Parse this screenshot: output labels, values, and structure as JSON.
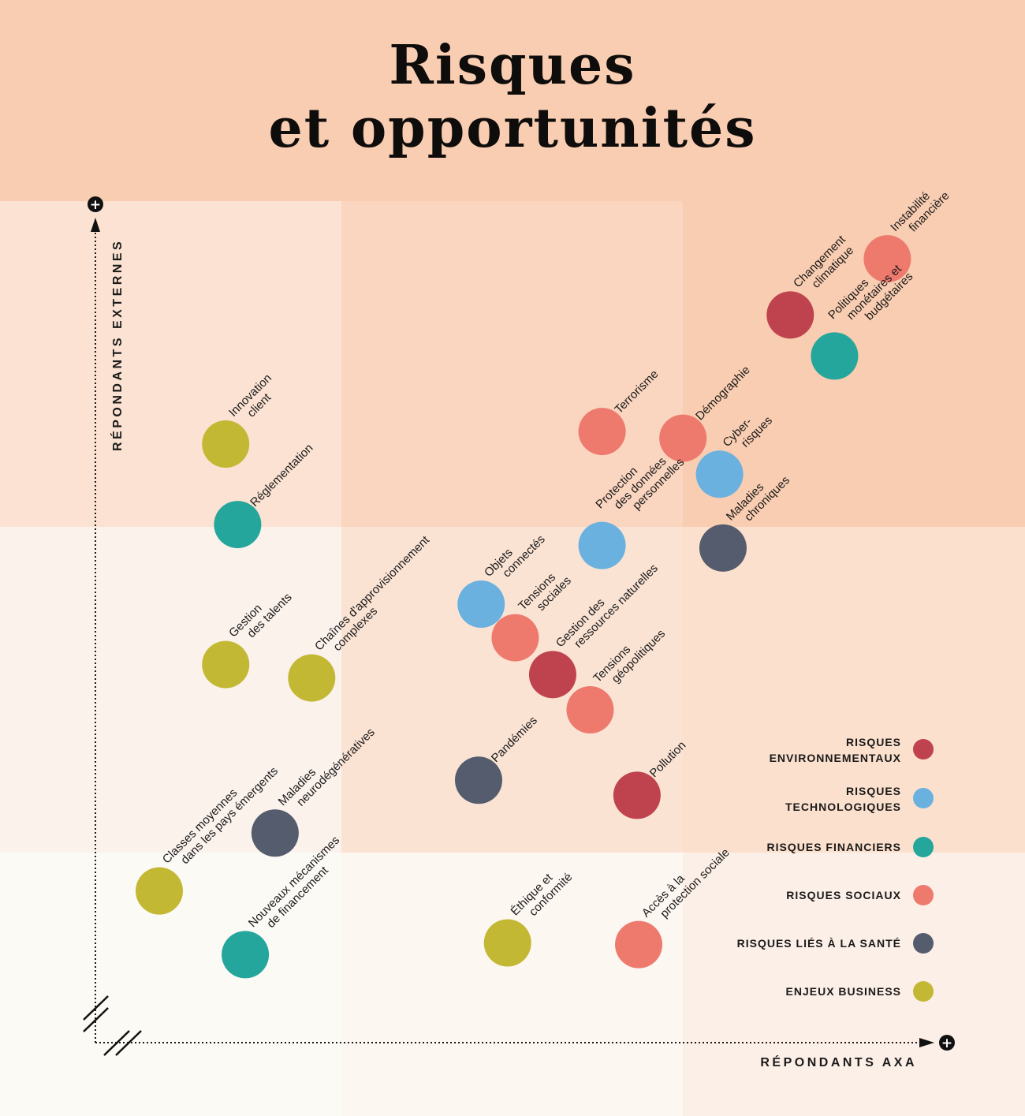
{
  "title_lines": [
    "Risques",
    "et opportunités"
  ],
  "chart_data": {
    "type": "scatter",
    "xlabel": "RÉPONDANTS AXA",
    "ylabel": "RÉPONDANTS EXTERNES",
    "axis_end_marker": "+",
    "xlim": [
      0,
      100
    ],
    "ylim": [
      0,
      100
    ],
    "grid": "3x3 tinted quadrants",
    "categories": [
      {
        "key": "env",
        "label": [
          "RISQUES",
          "ENVIRONNEMENTAUX"
        ],
        "color": "#bf434e"
      },
      {
        "key": "tech",
        "label": [
          "RISQUES",
          "TECHNOLOGIQUES"
        ],
        "color": "#6ab1e0"
      },
      {
        "key": "fin",
        "label": [
          "RISQUES FINANCIERS"
        ],
        "color": "#25a69c"
      },
      {
        "key": "soc",
        "label": [
          "RISQUES SOCIAUX"
        ],
        "color": "#ee7a6e"
      },
      {
        "key": "sante",
        "label": [
          "RISQUES LIÉS À LA SANTÉ"
        ],
        "color": "#545c6e"
      },
      {
        "key": "biz",
        "label": [
          "ENJEUX BUSINESS"
        ],
        "color": "#c3b833"
      }
    ],
    "points": [
      {
        "label": [
          "Instabilité",
          "financière"
        ],
        "category": "soc",
        "x": 93.0,
        "y": 93.5
      },
      {
        "label": [
          "Changement",
          "climatique"
        ],
        "category": "env",
        "x": 81.6,
        "y": 86.8
      },
      {
        "label": [
          "Politiques",
          "monétaires et",
          "budgétaires"
        ],
        "category": "fin",
        "x": 86.8,
        "y": 81.9
      },
      {
        "label": [
          "Terrorisme"
        ],
        "category": "soc",
        "x": 59.5,
        "y": 72.9
      },
      {
        "label": [
          "Démographie"
        ],
        "category": "soc",
        "x": 69.0,
        "y": 72.1
      },
      {
        "label": [
          "Cyber-",
          "risques"
        ],
        "category": "tech",
        "x": 73.3,
        "y": 67.8
      },
      {
        "label": [
          "Maladies",
          "chroniques"
        ],
        "category": "sante",
        "x": 73.7,
        "y": 59.0
      },
      {
        "label": [
          "Protection",
          "des données",
          "personnelles"
        ],
        "category": "tech",
        "x": 59.5,
        "y": 59.3
      },
      {
        "label": [
          "Innovation",
          "client"
        ],
        "category": "biz",
        "x": 15.3,
        "y": 71.4
      },
      {
        "label": [
          "Réglementation"
        ],
        "category": "fin",
        "x": 16.7,
        "y": 61.8
      },
      {
        "label": [
          "Objets",
          "connectés"
        ],
        "category": "tech",
        "x": 45.3,
        "y": 52.3
      },
      {
        "label": [
          "Tensions",
          "sociales"
        ],
        "category": "soc",
        "x": 49.3,
        "y": 48.3
      },
      {
        "label": [
          "Gestion des",
          "ressources naturelles"
        ],
        "category": "env",
        "x": 53.7,
        "y": 43.9
      },
      {
        "label": [
          "Tensions",
          "géopolitiques"
        ],
        "category": "soc",
        "x": 58.1,
        "y": 39.7
      },
      {
        "label": [
          "Gestion",
          "des talents"
        ],
        "category": "biz",
        "x": 15.3,
        "y": 45.1
      },
      {
        "label": [
          "Chaînes d'approvisionnement",
          "complexes"
        ],
        "category": "biz",
        "x": 25.4,
        "y": 43.5
      },
      {
        "label": [
          "Pandémies"
        ],
        "category": "sante",
        "x": 45.0,
        "y": 31.3
      },
      {
        "label": [
          "Pollution"
        ],
        "category": "env",
        "x": 63.6,
        "y": 29.5
      },
      {
        "label": [
          "Maladies",
          "neurodégénératives"
        ],
        "category": "sante",
        "x": 21.1,
        "y": 25.0
      },
      {
        "label": [
          "Classes moyennes",
          "dans les pays émergents"
        ],
        "category": "biz",
        "x": 7.5,
        "y": 18.1
      },
      {
        "label": [
          "Nouveaux mécanismes",
          "de financement"
        ],
        "category": "fin",
        "x": 17.6,
        "y": 10.5
      },
      {
        "label": [
          "Éthique et",
          "conformité"
        ],
        "category": "biz",
        "x": 48.4,
        "y": 11.9
      },
      {
        "label": [
          "Accès à la",
          "protection sociale"
        ],
        "category": "soc",
        "x": 63.8,
        "y": 11.7
      }
    ]
  }
}
